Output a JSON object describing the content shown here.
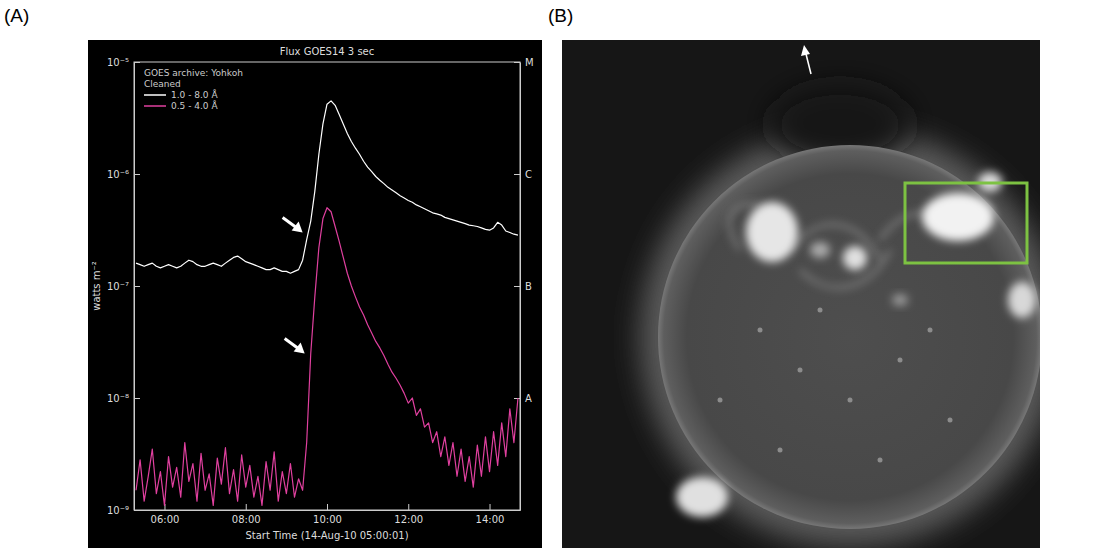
{
  "panel_labels": [
    "(A)",
    "(B)"
  ],
  "chart_data": {
    "type": "line",
    "title": "Flux  GOES14 3 sec",
    "xlabel": "Start Time (14-Aug-10 05:00:01)",
    "ylabel": "watts m⁻²",
    "annotations": [
      "GOES archive: Yohkoh",
      "Cleaned"
    ],
    "x": [
      5.3,
      5.4,
      5.5,
      5.6,
      5.7,
      5.8,
      5.9,
      6.0,
      6.1,
      6.2,
      6.3,
      6.4,
      6.5,
      6.6,
      6.7,
      6.8,
      6.9,
      7.0,
      7.1,
      7.2,
      7.3,
      7.4,
      7.5,
      7.6,
      7.7,
      7.8,
      7.9,
      8.0,
      8.1,
      8.2,
      8.3,
      8.4,
      8.5,
      8.6,
      8.7,
      8.8,
      8.9,
      9.0,
      9.1,
      9.2,
      9.3,
      9.4,
      9.5,
      9.6,
      9.7,
      9.8,
      9.9,
      10.0,
      10.1,
      10.2,
      10.3,
      10.4,
      10.5,
      10.6,
      10.7,
      10.8,
      10.9,
      11.0,
      11.1,
      11.2,
      11.3,
      11.4,
      11.5,
      11.6,
      11.7,
      11.8,
      11.9,
      12.0,
      12.1,
      12.2,
      12.3,
      12.4,
      12.5,
      12.6,
      12.7,
      12.8,
      12.9,
      13.0,
      13.1,
      13.2,
      13.3,
      13.4,
      13.5,
      13.6,
      13.7,
      13.8,
      13.9,
      14.0,
      14.1,
      14.2,
      14.3,
      14.4,
      14.5,
      14.6,
      14.7
    ],
    "series": [
      {
        "name": "1.0 - 8.0 Å",
        "color": "#ffffff",
        "values": [
          1.6e-07,
          1.55e-07,
          1.5e-07,
          1.55e-07,
          1.6e-07,
          1.5e-07,
          1.45e-07,
          1.5e-07,
          1.55e-07,
          1.5e-07,
          1.45e-07,
          1.5e-07,
          1.6e-07,
          1.7e-07,
          1.65e-07,
          1.55e-07,
          1.5e-07,
          1.5e-07,
          1.55e-07,
          1.6e-07,
          1.55e-07,
          1.5e-07,
          1.6e-07,
          1.7e-07,
          1.8e-07,
          1.85e-07,
          1.75e-07,
          1.65e-07,
          1.6e-07,
          1.55e-07,
          1.5e-07,
          1.45e-07,
          1.4e-07,
          1.4e-07,
          1.45e-07,
          1.4e-07,
          1.35e-07,
          1.35e-07,
          1.3e-07,
          1.35e-07,
          1.4e-07,
          1.7e-07,
          2.6e-07,
          3.8e-07,
          7e-07,
          1.5e-06,
          2.8e-06,
          4.2e-06,
          4.5e-06,
          4.1e-06,
          3.4e-06,
          2.8e-06,
          2.3e-06,
          1.95e-06,
          1.7e-06,
          1.5e-06,
          1.3e-06,
          1.15e-06,
          1.05e-06,
          9.5e-07,
          8.8e-07,
          8.2e-07,
          7.6e-07,
          7.2e-07,
          6.8e-07,
          6.4e-07,
          6.1e-07,
          5.8e-07,
          5.6e-07,
          5.3e-07,
          5.1e-07,
          4.9e-07,
          4.7e-07,
          4.5e-07,
          4.4e-07,
          4.3e-07,
          4.1e-07,
          4e-07,
          3.9e-07,
          3.8e-07,
          3.7e-07,
          3.6e-07,
          3.5e-07,
          3.45e-07,
          3.4e-07,
          3.3e-07,
          3.2e-07,
          3.15e-07,
          3.3e-07,
          3.7e-07,
          3.5e-07,
          3.1e-07,
          3e-07,
          2.9e-07,
          2.85e-07
        ]
      },
      {
        "name": "0.5 - 4.0 Å",
        "color": "#e0409f",
        "values": [
          1.5e-09,
          2.8e-09,
          1.2e-09,
          2e-09,
          3.5e-09,
          1.4e-09,
          2.2e-09,
          1.1e-09,
          3e-09,
          1.6e-09,
          2.4e-09,
          1.3e-09,
          4e-09,
          1.8e-09,
          2.6e-09,
          1.2e-09,
          3.2e-09,
          1.5e-09,
          2.1e-09,
          1.1e-09,
          2.9e-09,
          1.7e-09,
          3.6e-09,
          1.4e-09,
          2.3e-09,
          1.2e-09,
          3.1e-09,
          1.6e-09,
          2.5e-09,
          1.3e-09,
          2e-09,
          1.1e-09,
          2.7e-09,
          1.5e-09,
          3.3e-09,
          1.2e-09,
          2.2e-09,
          1.4e-09,
          2.6e-09,
          1.3e-09,
          1.9e-09,
          1.5e-09,
          4e-09,
          2.5e-08,
          8e-08,
          2.2e-07,
          4e-07,
          5e-07,
          4.6e-07,
          3.4e-07,
          2.5e-07,
          1.8e-07,
          1.3e-07,
          1e-07,
          8e-08,
          6.5e-08,
          5.5e-08,
          4.5e-08,
          3.8e-08,
          3.2e-08,
          2.8e-08,
          2.4e-08,
          2e-08,
          1.7e-08,
          1.5e-08,
          1.3e-08,
          1.1e-08,
          9e-09,
          1e-08,
          7e-09,
          8e-09,
          5.5e-09,
          6e-09,
          4e-09,
          5e-09,
          3e-09,
          4.5e-09,
          2.5e-09,
          4e-09,
          2e-09,
          3.5e-09,
          1.8e-09,
          3e-09,
          1.6e-09,
          3.8e-09,
          2e-09,
          4.5e-09,
          2.2e-09,
          5e-09,
          2.5e-09,
          6e-09,
          3e-09,
          8e-09,
          4e-09,
          1e-08
        ]
      }
    ],
    "arrows": [
      {
        "x": 9.4,
        "y": 3e-07
      },
      {
        "x": 9.45,
        "y": 2.5e-08
      }
    ],
    "xlim": [
      5.25,
      14.75
    ],
    "xticks": [
      {
        "value": 6,
        "label": "06:00"
      },
      {
        "value": 8,
        "label": "08:00"
      },
      {
        "value": 10,
        "label": "10:00"
      },
      {
        "value": 12,
        "label": "12:00"
      },
      {
        "value": 14,
        "label": "14:00"
      }
    ],
    "ylim": [
      1e-09,
      1e-05
    ],
    "yticks": [
      {
        "value": 1e-09,
        "label": "10⁻⁹"
      },
      {
        "value": 1e-08,
        "label": "10⁻⁸"
      },
      {
        "value": 1e-07,
        "label": "10⁻⁷"
      },
      {
        "value": 1e-06,
        "label": "10⁻⁶"
      },
      {
        "value": 1e-05,
        "label": "10⁻⁵"
      }
    ],
    "y2lim": [
      1e-09,
      1e-05
    ],
    "y2ticks": [
      {
        "value": 1e-08,
        "label": "A"
      },
      {
        "value": 1e-07,
        "label": "B"
      },
      {
        "value": 1e-06,
        "label": "C"
      },
      {
        "value": 1e-05,
        "label": "M"
      }
    ],
    "log": "y",
    "grid": false,
    "legend": "upper left"
  }
}
